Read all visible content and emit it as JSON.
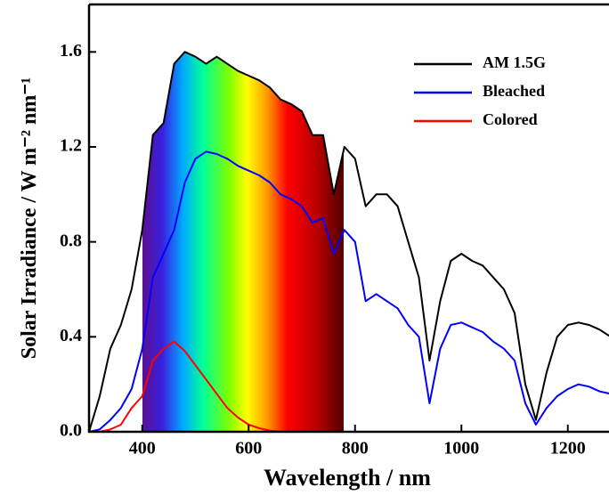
{
  "chart_data": {
    "type": "line",
    "x_label": "Wavelength / nm",
    "y_label": "Solar Irradiance / W m⁻² nm⁻¹",
    "x": [
      300,
      320,
      340,
      360,
      380,
      400,
      420,
      440,
      460,
      480,
      500,
      520,
      540,
      560,
      580,
      600,
      620,
      640,
      660,
      680,
      700,
      720,
      740,
      760,
      780,
      800,
      820,
      840,
      860,
      880,
      900,
      920,
      940,
      960,
      980,
      1000,
      1020,
      1040,
      1060,
      1080,
      1100,
      1120,
      1140,
      1160,
      1180,
      1200,
      1220,
      1240,
      1260,
      1280
    ],
    "series": [
      {
        "name": "AM 1.5G",
        "color": "#000000",
        "values": [
          0.0,
          0.15,
          0.35,
          0.45,
          0.6,
          0.85,
          1.25,
          1.3,
          1.55,
          1.6,
          1.58,
          1.55,
          1.58,
          1.55,
          1.52,
          1.5,
          1.48,
          1.45,
          1.4,
          1.38,
          1.35,
          1.25,
          1.25,
          1.0,
          1.2,
          1.15,
          0.95,
          1.0,
          1.0,
          0.95,
          0.8,
          0.65,
          0.3,
          0.55,
          0.72,
          0.75,
          0.72,
          0.7,
          0.65,
          0.6,
          0.5,
          0.2,
          0.05,
          0.25,
          0.4,
          0.45,
          0.46,
          0.45,
          0.43,
          0.4
        ]
      },
      {
        "name": "Bleached",
        "color": "#0000ff",
        "values": [
          0.0,
          0.01,
          0.05,
          0.1,
          0.18,
          0.35,
          0.65,
          0.75,
          0.85,
          1.05,
          1.15,
          1.18,
          1.17,
          1.15,
          1.12,
          1.1,
          1.08,
          1.05,
          1.0,
          0.98,
          0.95,
          0.88,
          0.9,
          0.75,
          0.85,
          0.8,
          0.55,
          0.58,
          0.55,
          0.52,
          0.45,
          0.4,
          0.12,
          0.35,
          0.45,
          0.46,
          0.44,
          0.42,
          0.38,
          0.35,
          0.3,
          0.12,
          0.03,
          0.1,
          0.15,
          0.18,
          0.2,
          0.19,
          0.17,
          0.16
        ]
      },
      {
        "name": "Colored",
        "color": "#ff0000",
        "values": [
          0.0,
          0.0,
          0.01,
          0.03,
          0.1,
          0.15,
          0.3,
          0.35,
          0.38,
          0.34,
          0.28,
          0.22,
          0.16,
          0.1,
          0.06,
          0.03,
          0.015,
          0.005,
          0.0,
          0.0,
          0.0,
          0.0,
          0.0,
          0.0,
          0.0,
          0.0,
          0.0,
          0.0,
          0.0,
          0.0,
          0.0,
          0.0,
          0.0,
          0.0,
          0.0,
          0.0,
          0.0,
          0.0,
          0.0,
          0.0,
          0.0,
          0.0,
          0.0,
          0.0,
          0.0,
          0.0,
          0.0,
          0.0,
          0.0,
          0.0
        ]
      }
    ],
    "xlim": [
      300,
      1280
    ],
    "xticks": [
      400,
      600,
      800,
      1000,
      1200
    ],
    "ylim": [
      0,
      1.8
    ],
    "yticks": [
      {
        "value": 0,
        "label": "0.0"
      },
      0.4,
      0.8,
      1.2,
      1.6
    ],
    "legend": "upper right"
  }
}
